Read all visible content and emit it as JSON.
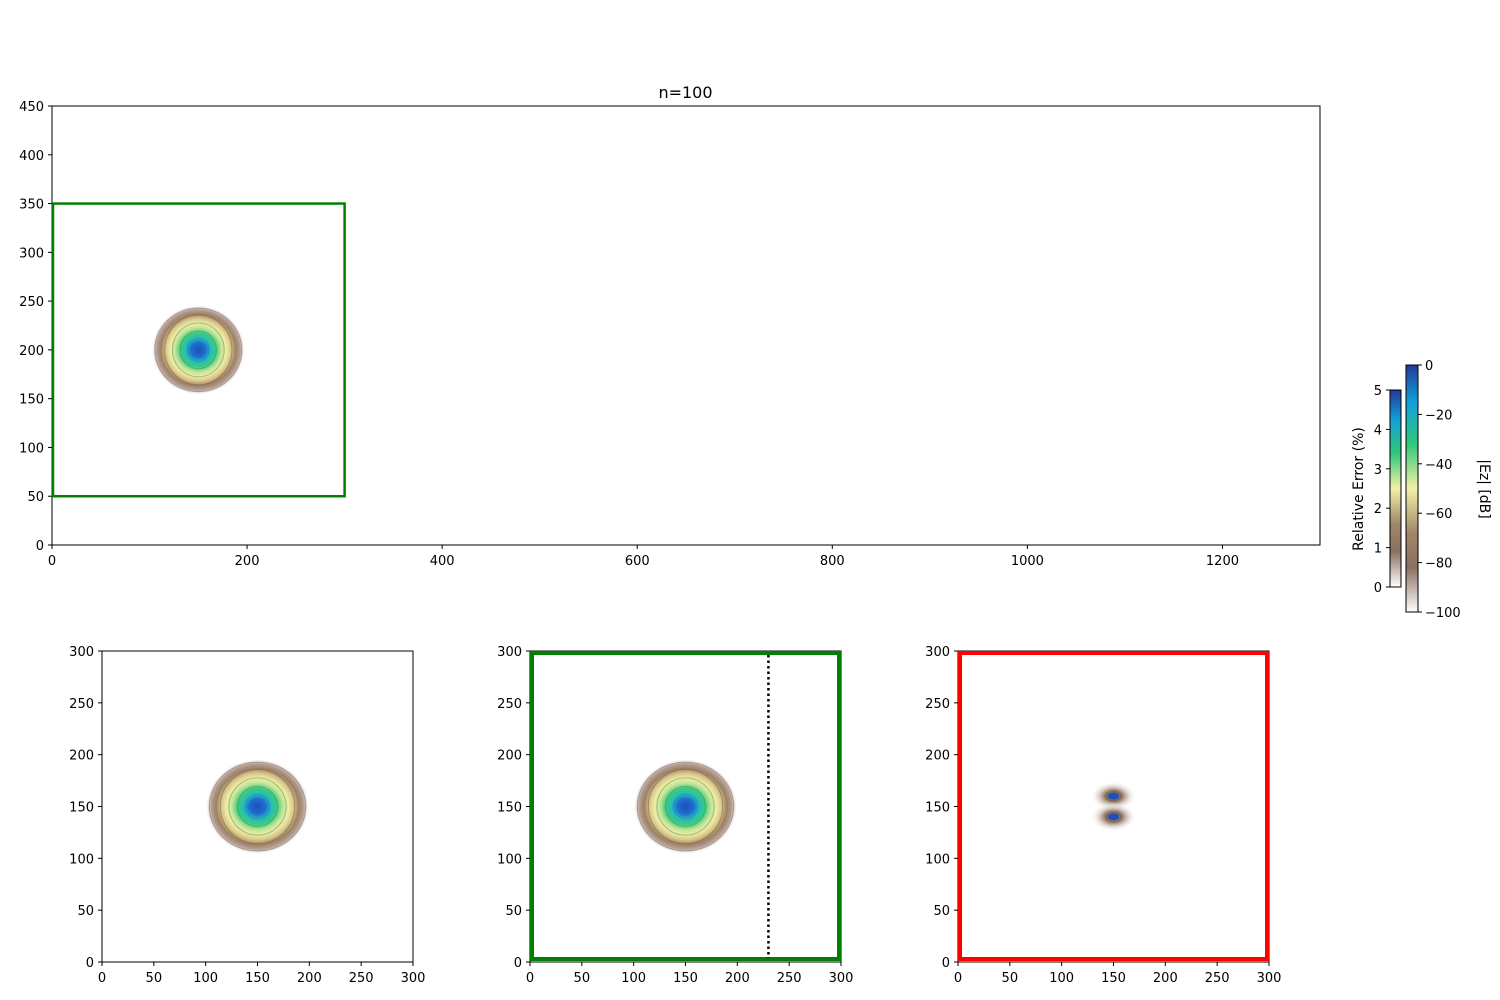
{
  "chart_data": [
    {
      "type": "heatmap",
      "panel": "main",
      "title": "n=100",
      "xlabel": "",
      "ylabel": "",
      "xlim": [
        0,
        1300
      ],
      "ylim": [
        0,
        450
      ],
      "xticks": [
        0,
        200,
        400,
        600,
        800,
        1000,
        1200
      ],
      "yticks": [
        0,
        50,
        100,
        150,
        200,
        250,
        300,
        350,
        400,
        450
      ],
      "field_source": {
        "x": 150,
        "y": 200,
        "semi_axis_x": 48,
        "semi_axis_y": 46
      },
      "box": {
        "x": [
          0,
          300
        ],
        "y": [
          50,
          350
        ],
        "color": "#008000"
      }
    },
    {
      "type": "heatmap",
      "panel": "bottom-left",
      "xlim": [
        0,
        300
      ],
      "ylim": [
        0,
        300
      ],
      "xticks": [
        0,
        50,
        100,
        150,
        200,
        250,
        300
      ],
      "yticks": [
        0,
        50,
        100,
        150,
        200,
        250,
        300
      ],
      "field_source": {
        "x": 150,
        "y": 150,
        "semi_axis_x": 50,
        "semi_axis_y": 46
      }
    },
    {
      "type": "heatmap",
      "panel": "bottom-middle",
      "xlim": [
        0,
        300
      ],
      "ylim": [
        0,
        300
      ],
      "xticks": [
        0,
        50,
        100,
        150,
        200,
        250,
        300
      ],
      "yticks": [
        0,
        50,
        100,
        150,
        200,
        250,
        300
      ],
      "field_source": {
        "x": 150,
        "y": 150,
        "semi_axis_x": 50,
        "semi_axis_y": 46
      },
      "box_color": "#008000",
      "dotted_line_x": 230
    },
    {
      "type": "heatmap",
      "panel": "bottom-right",
      "xlim": [
        0,
        300
      ],
      "ylim": [
        0,
        300
      ],
      "xticks": [
        0,
        50,
        100,
        150,
        200,
        250,
        300
      ],
      "yticks": [
        0,
        50,
        100,
        150,
        200,
        250,
        300
      ],
      "error_spots": [
        {
          "x": 150,
          "y": 160,
          "semi_axis_x": 22,
          "semi_axis_y": 14
        },
        {
          "x": 150,
          "y": 140,
          "semi_axis_x": 22,
          "semi_axis_y": 14
        }
      ],
      "box_color": "#ff0000"
    }
  ],
  "colorbars": [
    {
      "label": "Relative Error (%)",
      "range": [
        0,
        5
      ],
      "ticks": [
        0,
        1,
        2,
        3,
        4,
        5
      ]
    },
    {
      "label": "|Ez| [dB]",
      "range": [
        -100,
        0
      ],
      "ticks": [
        0,
        -20,
        -40,
        -60,
        -80,
        -100
      ]
    }
  ],
  "colormap_stops": [
    "#ffffff",
    "#7a5c46",
    "#b39a70",
    "#f3f1a6",
    "#31c77a",
    "#11a0d8",
    "#253a97"
  ]
}
